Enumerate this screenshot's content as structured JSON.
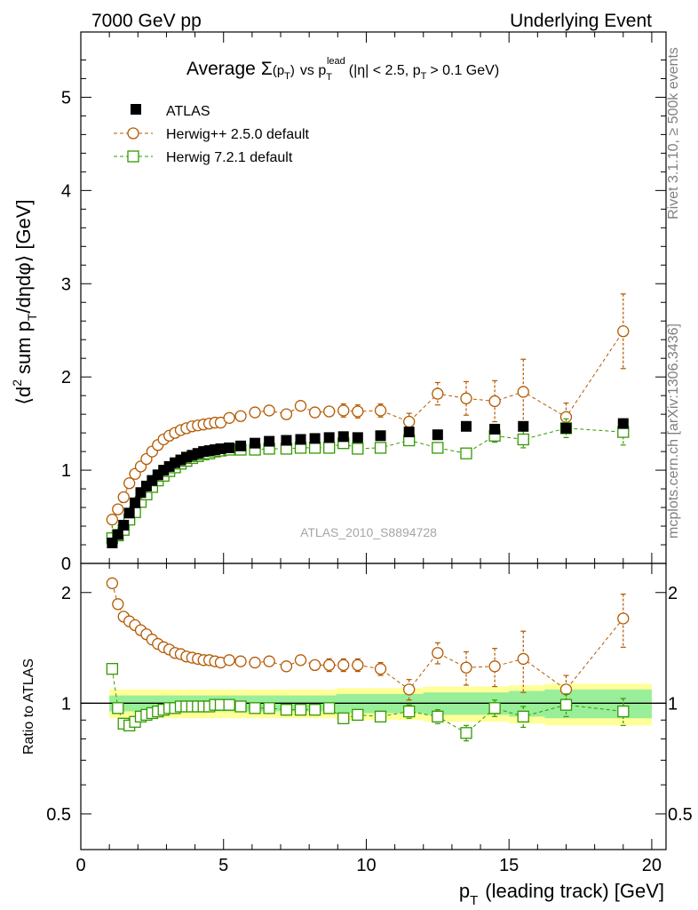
{
  "header": {
    "left": "7000 GeV pp",
    "right": "Underlying Event"
  },
  "side_labels": {
    "rivet": "Rivet 3.1.10, ≥ 500k events",
    "mcplots": "mcplots.cern.ch [arXiv:1306.3436]"
  },
  "watermark": "ATLAS_2010_S8894728",
  "chart_data": {
    "type": "scatter",
    "title": {
      "prefix": "Average",
      "sigma": "Σ",
      "sigma_arg": "(p",
      "sigma_sub": "T",
      "sigma_close": ")",
      "mid": "vs p",
      "lead_sub": "T",
      "lead_sup": "lead",
      "cuts": "(|η| < 2.5, p",
      "cuts_sub": "T",
      "cuts_end": "> 0.1 GeV)"
    },
    "ylabel": {
      "pre": "⟨d",
      "sup": "2",
      "mid": "sum p",
      "sub": "T",
      "post": "/dηdφ⟩ [GeV]"
    },
    "xlabel": {
      "pre": "p",
      "sub": "T",
      "post": "(leading track) [GeV]"
    },
    "ratio_ylabel": "Ratio to ATLAS",
    "xlim": [
      0,
      20.5
    ],
    "ylim": [
      0,
      5.7
    ],
    "ratio_ylim": [
      0.4,
      2.4
    ],
    "x_ticks": [
      "0",
      "5",
      "10",
      "15",
      "20"
    ],
    "y_ticks": [
      "0",
      "1",
      "2",
      "3",
      "4",
      "5"
    ],
    "ratio_ticks": [
      "0.5",
      "1",
      "2"
    ],
    "legend": [
      {
        "name": "ATLAS",
        "color": "#000000",
        "marker": "filled-square"
      },
      {
        "name": "Herwig++ 2.5.0 default",
        "color": "#b35900",
        "marker": "open-circle"
      },
      {
        "name": "Herwig 7.2.1 default",
        "color": "#339900",
        "marker": "open-square"
      }
    ],
    "series": [
      {
        "name": "ATLAS",
        "x": [
          1.1,
          1.3,
          1.5,
          1.7,
          1.9,
          2.1,
          2.3,
          2.5,
          2.7,
          2.9,
          3.1,
          3.3,
          3.5,
          3.7,
          3.9,
          4.1,
          4.3,
          4.5,
          4.7,
          4.9,
          5.2,
          5.6,
          6.1,
          6.6,
          7.2,
          7.7,
          8.2,
          8.7,
          9.2,
          9.7,
          10.5,
          11.5,
          12.5,
          13.5,
          14.5,
          15.5,
          17.0,
          19.0
        ],
        "y": [
          0.22,
          0.31,
          0.41,
          0.54,
          0.65,
          0.76,
          0.83,
          0.89,
          0.95,
          1.0,
          1.04,
          1.08,
          1.11,
          1.14,
          1.16,
          1.18,
          1.2,
          1.21,
          1.22,
          1.23,
          1.24,
          1.26,
          1.29,
          1.31,
          1.32,
          1.33,
          1.34,
          1.35,
          1.36,
          1.35,
          1.37,
          1.41,
          1.38,
          1.47,
          1.44,
          1.47,
          1.45,
          1.5
        ]
      },
      {
        "name": "Herwig++ 2.5.0 default",
        "x": [
          1.1,
          1.3,
          1.5,
          1.7,
          1.9,
          2.1,
          2.3,
          2.5,
          2.7,
          2.9,
          3.1,
          3.3,
          3.5,
          3.7,
          3.9,
          4.1,
          4.3,
          4.5,
          4.7,
          4.9,
          5.2,
          5.6,
          6.1,
          6.6,
          7.2,
          7.7,
          8.2,
          8.7,
          9.2,
          9.7,
          10.5,
          11.5,
          12.5,
          13.5,
          14.5,
          15.5,
          17.0,
          19.0
        ],
        "y": [
          0.47,
          0.58,
          0.71,
          0.86,
          0.96,
          1.04,
          1.12,
          1.2,
          1.27,
          1.33,
          1.37,
          1.4,
          1.43,
          1.45,
          1.47,
          1.48,
          1.49,
          1.5,
          1.51,
          1.51,
          1.56,
          1.58,
          1.62,
          1.64,
          1.6,
          1.69,
          1.62,
          1.63,
          1.64,
          1.63,
          1.64,
          1.52,
          1.82,
          1.77,
          1.74,
          1.84,
          1.57,
          2.49
        ],
        "err": [
          0.02,
          0.02,
          0.02,
          0.02,
          0.02,
          0.02,
          0.02,
          0.02,
          0.02,
          0.02,
          0.02,
          0.02,
          0.02,
          0.02,
          0.02,
          0.02,
          0.02,
          0.02,
          0.02,
          0.02,
          0.02,
          0.02,
          0.03,
          0.03,
          0.03,
          0.05,
          0.05,
          0.06,
          0.07,
          0.07,
          0.07,
          0.09,
          0.12,
          0.18,
          0.22,
          0.35,
          0.15,
          0.4
        ]
      },
      {
        "name": "Herwig 7.2.1 default",
        "x": [
          1.1,
          1.3,
          1.5,
          1.7,
          1.9,
          2.1,
          2.3,
          2.5,
          2.7,
          2.9,
          3.1,
          3.3,
          3.5,
          3.7,
          3.9,
          4.1,
          4.3,
          4.5,
          4.7,
          4.9,
          5.2,
          5.6,
          6.1,
          6.6,
          7.2,
          7.7,
          8.2,
          8.7,
          9.2,
          9.7,
          10.5,
          11.5,
          12.5,
          13.5,
          14.5,
          15.5,
          17.0,
          19.0
        ],
        "y": [
          0.27,
          0.3,
          0.36,
          0.47,
          0.55,
          0.66,
          0.74,
          0.82,
          0.89,
          0.94,
          0.99,
          1.03,
          1.07,
          1.1,
          1.13,
          1.15,
          1.17,
          1.18,
          1.2,
          1.21,
          1.22,
          1.22,
          1.22,
          1.23,
          1.23,
          1.24,
          1.24,
          1.24,
          1.29,
          1.23,
          1.24,
          1.32,
          1.24,
          1.18,
          1.37,
          1.33,
          1.45,
          1.41
        ],
        "err": [
          0.01,
          0.01,
          0.01,
          0.01,
          0.01,
          0.01,
          0.01,
          0.01,
          0.01,
          0.01,
          0.01,
          0.01,
          0.01,
          0.01,
          0.01,
          0.01,
          0.01,
          0.01,
          0.01,
          0.01,
          0.01,
          0.01,
          0.02,
          0.02,
          0.02,
          0.03,
          0.03,
          0.03,
          0.04,
          0.04,
          0.04,
          0.05,
          0.05,
          0.06,
          0.07,
          0.09,
          0.1,
          0.14
        ]
      }
    ],
    "ratio_series": [
      {
        "name": "Herwig++ 2.5.0 default",
        "x": [
          1.1,
          1.3,
          1.5,
          1.7,
          1.9,
          2.1,
          2.3,
          2.5,
          2.7,
          2.9,
          3.1,
          3.3,
          3.5,
          3.7,
          3.9,
          4.1,
          4.3,
          4.5,
          4.7,
          4.9,
          5.2,
          5.6,
          6.1,
          6.6,
          7.2,
          7.7,
          8.2,
          8.7,
          9.2,
          9.7,
          10.5,
          11.5,
          12.5,
          13.5,
          14.5,
          15.5,
          17.0,
          19.0
        ],
        "y": [
          2.12,
          1.86,
          1.72,
          1.67,
          1.63,
          1.58,
          1.54,
          1.49,
          1.45,
          1.42,
          1.4,
          1.37,
          1.36,
          1.34,
          1.33,
          1.32,
          1.31,
          1.31,
          1.3,
          1.29,
          1.31,
          1.3,
          1.29,
          1.3,
          1.26,
          1.31,
          1.27,
          1.27,
          1.27,
          1.27,
          1.24,
          1.09,
          1.37,
          1.25,
          1.26,
          1.32,
          1.09,
          1.7
        ],
        "err": [
          0.02,
          0.02,
          0.02,
          0.02,
          0.02,
          0.02,
          0.02,
          0.02,
          0.02,
          0.02,
          0.02,
          0.02,
          0.02,
          0.02,
          0.02,
          0.02,
          0.02,
          0.02,
          0.02,
          0.02,
          0.02,
          0.02,
          0.02,
          0.02,
          0.03,
          0.04,
          0.04,
          0.05,
          0.05,
          0.05,
          0.05,
          0.07,
          0.09,
          0.13,
          0.15,
          0.25,
          0.1,
          0.28
        ]
      },
      {
        "name": "Herwig 7.2.1 default",
        "x": [
          1.1,
          1.3,
          1.5,
          1.7,
          1.9,
          2.1,
          2.3,
          2.5,
          2.7,
          2.9,
          3.1,
          3.3,
          3.5,
          3.7,
          3.9,
          4.1,
          4.3,
          4.5,
          4.7,
          4.9,
          5.2,
          5.6,
          6.1,
          6.6,
          7.2,
          7.7,
          8.2,
          8.7,
          9.2,
          9.7,
          10.5,
          11.5,
          12.5,
          13.5,
          14.5,
          15.5,
          17.0,
          19.0
        ],
        "y": [
          1.24,
          0.97,
          0.88,
          0.87,
          0.89,
          0.92,
          0.93,
          0.94,
          0.95,
          0.96,
          0.97,
          0.97,
          0.98,
          0.98,
          0.98,
          0.98,
          0.98,
          0.98,
          0.99,
          0.99,
          0.99,
          0.98,
          0.97,
          0.97,
          0.96,
          0.96,
          0.96,
          0.97,
          0.91,
          0.93,
          0.92,
          0.95,
          0.92,
          0.83,
          0.97,
          0.92,
          0.99,
          0.95
        ],
        "err": [
          0.01,
          0.01,
          0.01,
          0.01,
          0.01,
          0.01,
          0.01,
          0.01,
          0.01,
          0.01,
          0.01,
          0.01,
          0.01,
          0.01,
          0.01,
          0.01,
          0.01,
          0.01,
          0.01,
          0.01,
          0.01,
          0.01,
          0.01,
          0.01,
          0.02,
          0.02,
          0.02,
          0.02,
          0.03,
          0.03,
          0.03,
          0.04,
          0.04,
          0.04,
          0.05,
          0.06,
          0.07,
          0.08
        ]
      }
    ],
    "band_inner": [
      0.05,
      0.05,
      0.05,
      0.05,
      0.05,
      0.05,
      0.05,
      0.05,
      0.05,
      0.05,
      0.05,
      0.05,
      0.05,
      0.05,
      0.05,
      0.05,
      0.05,
      0.05,
      0.05,
      0.05,
      0.05,
      0.05,
      0.05,
      0.05,
      0.05,
      0.05,
      0.05,
      0.05,
      0.06,
      0.06,
      0.06,
      0.06,
      0.07,
      0.07,
      0.07,
      0.08,
      0.09,
      0.09
    ],
    "band_outer": [
      0.09,
      0.09,
      0.09,
      0.09,
      0.09,
      0.09,
      0.09,
      0.09,
      0.09,
      0.09,
      0.09,
      0.09,
      0.09,
      0.09,
      0.09,
      0.09,
      0.09,
      0.09,
      0.09,
      0.09,
      0.09,
      0.09,
      0.09,
      0.09,
      0.09,
      0.09,
      0.09,
      0.09,
      0.1,
      0.1,
      0.1,
      0.1,
      0.11,
      0.11,
      0.11,
      0.12,
      0.13,
      0.13
    ],
    "colors": {
      "band_inner": "#99ee99",
      "band_outer": "#ffff99"
    }
  }
}
